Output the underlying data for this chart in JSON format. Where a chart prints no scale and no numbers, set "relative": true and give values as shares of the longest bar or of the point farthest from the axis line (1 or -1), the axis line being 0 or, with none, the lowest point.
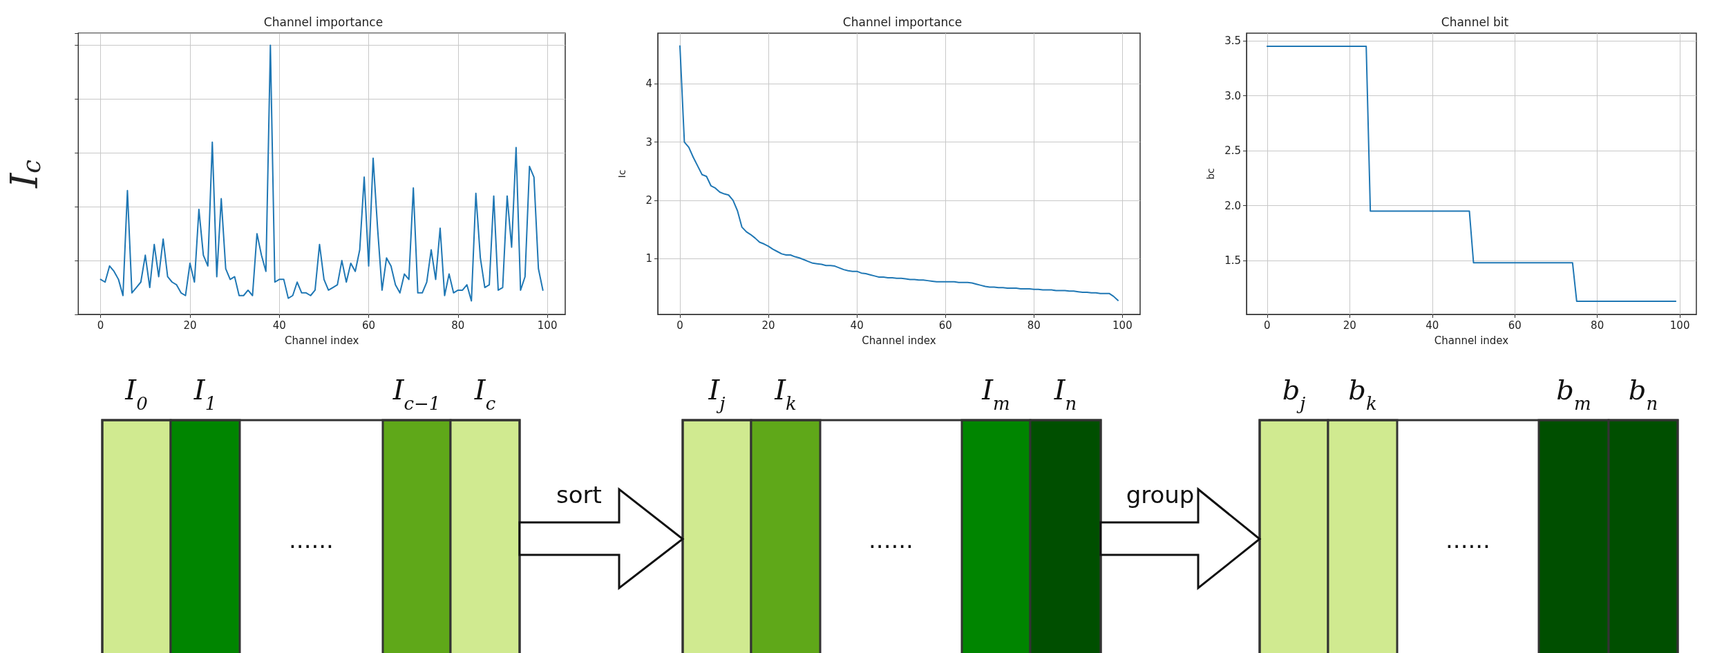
{
  "chart_data": [
    {
      "type": "line",
      "title": "Channel importance",
      "xlabel": "Channel index",
      "ylabel": "I$_{c}$",
      "relative": true,
      "tick_labels": "x",
      "grid": true,
      "marker": "none",
      "line_style": "solid",
      "color": "#1f77b4",
      "xlim": [
        -5,
        104
      ],
      "xticks": [
        0,
        20,
        40,
        60,
        80,
        100
      ],
      "x": [
        0,
        1,
        2,
        3,
        4,
        5,
        6,
        7,
        8,
        9,
        10,
        11,
        12,
        13,
        14,
        15,
        16,
        17,
        18,
        19,
        20,
        21,
        22,
        23,
        24,
        25,
        26,
        27,
        28,
        29,
        30,
        31,
        32,
        33,
        34,
        35,
        36,
        37,
        38,
        39,
        40,
        41,
        42,
        43,
        44,
        45,
        46,
        47,
        48,
        49,
        50,
        51,
        52,
        53,
        54,
        55,
        56,
        57,
        58,
        59,
        60,
        61,
        62,
        63,
        64,
        65,
        66,
        67,
        68,
        69,
        70,
        71,
        72,
        73,
        74,
        75,
        76,
        77,
        78,
        79,
        80,
        81,
        82,
        83,
        84,
        85,
        86,
        87,
        88,
        89,
        90,
        91,
        92,
        93,
        94,
        95,
        96,
        97,
        98,
        99
      ],
      "values": [
        0.13,
        0.12,
        0.18,
        0.16,
        0.13,
        0.07,
        0.46,
        0.08,
        0.1,
        0.12,
        0.22,
        0.1,
        0.26,
        0.14,
        0.28,
        0.14,
        0.12,
        0.11,
        0.08,
        0.07,
        0.19,
        0.12,
        0.39,
        0.22,
        0.18,
        0.64,
        0.14,
        0.43,
        0.17,
        0.13,
        0.14,
        0.07,
        0.07,
        0.09,
        0.07,
        0.3,
        0.22,
        0.16,
        1,
        0.12,
        0.13,
        0.13,
        0.06,
        0.07,
        0.12,
        0.08,
        0.08,
        0.07,
        0.09,
        0.26,
        0.13,
        0.09,
        0.1,
        0.11,
        0.2,
        0.12,
        0.19,
        0.16,
        0.24,
        0.51,
        0.18,
        0.58,
        0.32,
        0.09,
        0.21,
        0.18,
        0.11,
        0.08,
        0.15,
        0.13,
        0.47,
        0.08,
        0.08,
        0.12,
        0.24,
        0.13,
        0.32,
        0.07,
        0.15,
        0.08,
        0.09,
        0.09,
        0.11,
        0.05,
        0.45,
        0.21,
        0.1,
        0.11,
        0.44,
        0.09,
        0.1,
        0.44,
        0.25,
        0.62,
        0.09,
        0.14,
        0.55,
        0.51,
        0.17,
        0.09
      ]
    },
    {
      "type": "line",
      "title": "Channel importance",
      "xlabel": "Channel index",
      "ylabel": "Ic",
      "grid": true,
      "marker": "none",
      "line_style": "solid",
      "color": "#1f77b4",
      "xlim": [
        -5,
        104
      ],
      "xticks": [
        0,
        20,
        40,
        60,
        80,
        100
      ],
      "ylim": [
        0.04,
        4.87
      ],
      "yticks": [
        1,
        2,
        3,
        4
      ],
      "x": [
        0,
        1,
        2,
        3,
        4,
        5,
        6,
        7,
        8,
        9,
        10,
        11,
        12,
        13,
        14,
        15,
        16,
        17,
        18,
        19,
        20,
        21,
        22,
        23,
        24,
        25,
        26,
        27,
        28,
        29,
        30,
        31,
        32,
        33,
        34,
        35,
        36,
        37,
        38,
        39,
        40,
        41,
        42,
        43,
        44,
        45,
        46,
        47,
        48,
        49,
        50,
        51,
        52,
        53,
        54,
        55,
        56,
        57,
        58,
        59,
        60,
        61,
        62,
        63,
        64,
        65,
        66,
        67,
        68,
        69,
        70,
        71,
        72,
        73,
        74,
        75,
        76,
        77,
        78,
        79,
        80,
        81,
        82,
        83,
        84,
        85,
        86,
        87,
        88,
        89,
        90,
        91,
        92,
        93,
        94,
        95,
        96,
        97,
        98,
        99
      ],
      "values": [
        4.65,
        3.0,
        2.91,
        2.74,
        2.59,
        2.44,
        2.41,
        2.25,
        2.21,
        2.14,
        2.11,
        2.09,
        2.0,
        1.82,
        1.54,
        1.46,
        1.41,
        1.35,
        1.28,
        1.25,
        1.21,
        1.16,
        1.12,
        1.08,
        1.06,
        1.06,
        1.03,
        1.01,
        0.98,
        0.95,
        0.92,
        0.91,
        0.9,
        0.88,
        0.88,
        0.87,
        0.84,
        0.81,
        0.79,
        0.78,
        0.78,
        0.75,
        0.74,
        0.72,
        0.7,
        0.68,
        0.68,
        0.67,
        0.67,
        0.66,
        0.66,
        0.65,
        0.64,
        0.64,
        0.63,
        0.63,
        0.62,
        0.61,
        0.6,
        0.6,
        0.6,
        0.6,
        0.6,
        0.59,
        0.59,
        0.59,
        0.58,
        0.56,
        0.54,
        0.52,
        0.51,
        0.51,
        0.5,
        0.5,
        0.49,
        0.49,
        0.49,
        0.48,
        0.48,
        0.48,
        0.47,
        0.47,
        0.46,
        0.46,
        0.46,
        0.45,
        0.45,
        0.45,
        0.44,
        0.44,
        0.43,
        0.42,
        0.42,
        0.41,
        0.41,
        0.4,
        0.4,
        0.4,
        0.35,
        0.28
      ]
    },
    {
      "type": "line",
      "title": "Channel bit",
      "xlabel": "Channel index",
      "ylabel": "bc",
      "grid": true,
      "marker": "none",
      "line_style": "solid",
      "color": "#1f77b4",
      "xlim": [
        -5,
        104
      ],
      "xticks": [
        0,
        20,
        40,
        60,
        80,
        100
      ],
      "ylim": [
        1.01,
        3.57
      ],
      "yticks": [
        1.5,
        {
          "value": 2,
          "label": "2.0"
        },
        2.5,
        {
          "value": 3,
          "label": "3.0"
        },
        3.5
      ],
      "x": [
        0,
        24,
        25,
        49,
        50,
        74,
        75,
        99
      ],
      "values": [
        3.45,
        3.45,
        1.95,
        1.95,
        1.48,
        1.48,
        1.13,
        1.13
      ]
    },
    {
      "type": "other",
      "annotations": [
        "I$_{0}$",
        "I$_{1}$",
        "I$_{c−1}$",
        "I$_{c}$",
        "......",
        "sort",
        "I$_{j}$",
        "I$_{k}$",
        "I$_{m}$",
        "I$_{n}$",
        "......",
        "group",
        "b$_{j}$",
        "b$_{k}$",
        "b$_{m}$",
        "b$_{n}$",
        "......"
      ]
    }
  ]
}
